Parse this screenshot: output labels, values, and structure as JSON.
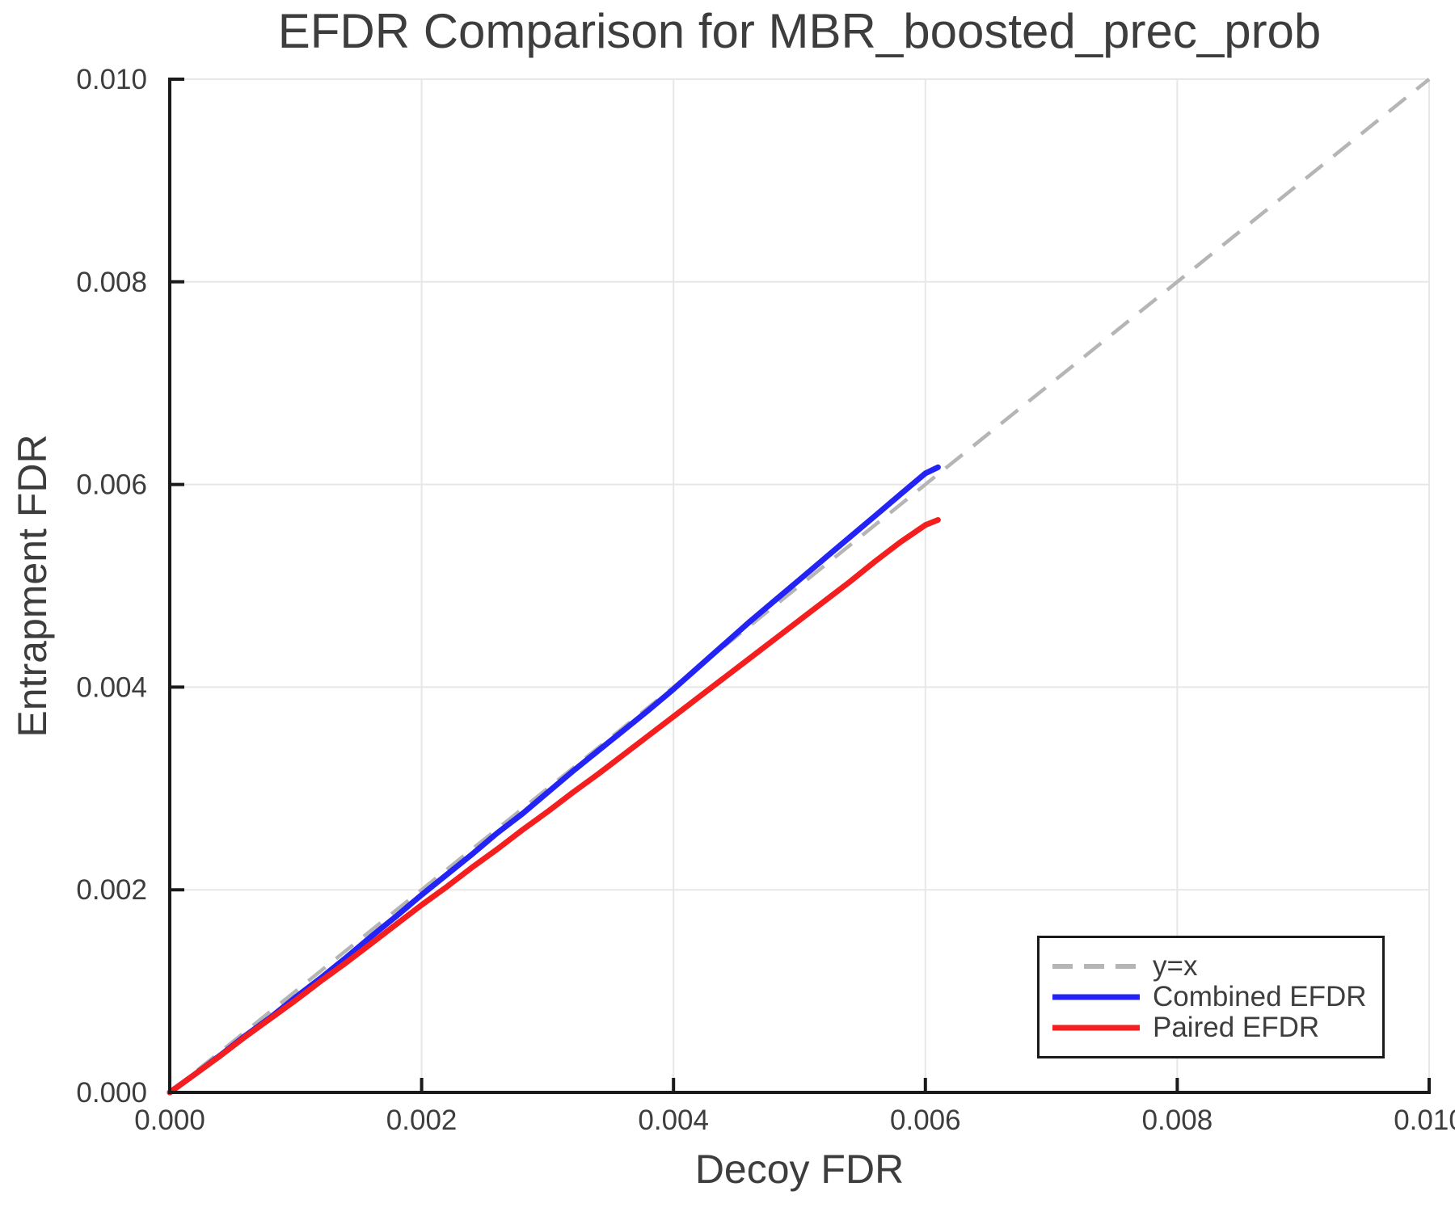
{
  "page": {
    "background": "#ffffff",
    "text_color": "#3d3d3d",
    "axis_color": "#1a1a1a",
    "gridline_color": "#e7e7e7"
  },
  "chart_data": {
    "type": "line",
    "title": "EFDR Comparison for MBR_boosted_prec_prob",
    "xlabel": "Decoy FDR",
    "ylabel": "Entrapment FDR",
    "xlim": [
      0.0,
      0.01
    ],
    "ylim": [
      0.0,
      0.01
    ],
    "grid": true,
    "xticks": {
      "values": [
        0.0,
        0.002,
        0.004,
        0.006,
        0.008,
        0.01
      ],
      "labels": [
        "0.000",
        "0.002",
        "0.004",
        "0.006",
        "0.008",
        "0.010"
      ]
    },
    "yticks": {
      "values": [
        0.0,
        0.002,
        0.004,
        0.006,
        0.008,
        0.01
      ],
      "labels": [
        "0.000",
        "0.002",
        "0.004",
        "0.006",
        "0.008",
        "0.010"
      ]
    },
    "reference_line": {
      "name": "y=x",
      "style": "dashed",
      "color": "#b5b5b5",
      "from": [
        0.0,
        0.0
      ],
      "to": [
        0.01,
        0.01
      ]
    },
    "series": [
      {
        "name": "Combined EFDR",
        "color": "#2323f5",
        "points": [
          [
            0.0,
            0.0
          ],
          [
            0.0002,
            0.00018
          ],
          [
            0.0004,
            0.000365
          ],
          [
            0.0006,
            0.00056
          ],
          [
            0.0008,
            0.00074
          ],
          [
            0.001,
            0.00094
          ],
          [
            0.0012,
            0.00113
          ],
          [
            0.0014,
            0.00133
          ],
          [
            0.0016,
            0.00154
          ],
          [
            0.0018,
            0.00174
          ],
          [
            0.002,
            0.00195
          ],
          [
            0.0022,
            0.00215
          ],
          [
            0.0024,
            0.00235
          ],
          [
            0.0026,
            0.00256
          ],
          [
            0.0028,
            0.00275
          ],
          [
            0.003,
            0.00296
          ],
          [
            0.0032,
            0.00317
          ],
          [
            0.0034,
            0.00337
          ],
          [
            0.0036,
            0.00357
          ],
          [
            0.0038,
            0.00377
          ],
          [
            0.004,
            0.00398
          ],
          [
            0.0042,
            0.0042
          ],
          [
            0.0044,
            0.00442
          ],
          [
            0.0046,
            0.00464
          ],
          [
            0.0048,
            0.00485
          ],
          [
            0.005,
            0.00506
          ],
          [
            0.0052,
            0.00527
          ],
          [
            0.0054,
            0.00548
          ],
          [
            0.0056,
            0.00569
          ],
          [
            0.0058,
            0.0059
          ],
          [
            0.006,
            0.00611
          ],
          [
            0.0061,
            0.00617
          ]
        ]
      },
      {
        "name": "Paired EFDR",
        "color": "#f51e1e",
        "points": [
          [
            0.0,
            0.0
          ],
          [
            0.0002,
            0.00018
          ],
          [
            0.0004,
            0.00036
          ],
          [
            0.0006,
            0.00055
          ],
          [
            0.0008,
            0.00073
          ],
          [
            0.001,
            0.00091
          ],
          [
            0.0012,
            0.0011
          ],
          [
            0.0014,
            0.00128
          ],
          [
            0.0016,
            0.00147
          ],
          [
            0.0018,
            0.00166
          ],
          [
            0.002,
            0.00185
          ],
          [
            0.0022,
            0.00203
          ],
          [
            0.0024,
            0.00222
          ],
          [
            0.0026,
            0.0024
          ],
          [
            0.0028,
            0.00259
          ],
          [
            0.003,
            0.00277
          ],
          [
            0.0032,
            0.00296
          ],
          [
            0.0034,
            0.00314
          ],
          [
            0.0036,
            0.00333
          ],
          [
            0.0038,
            0.00352
          ],
          [
            0.004,
            0.00371
          ],
          [
            0.0042,
            0.0039
          ],
          [
            0.0044,
            0.00409
          ],
          [
            0.0046,
            0.00428
          ],
          [
            0.0048,
            0.00447
          ],
          [
            0.005,
            0.00466
          ],
          [
            0.0052,
            0.00485
          ],
          [
            0.0054,
            0.00504
          ],
          [
            0.0056,
            0.00524
          ],
          [
            0.0058,
            0.00543
          ],
          [
            0.006,
            0.0056
          ],
          [
            0.0061,
            0.00565
          ]
        ]
      }
    ],
    "legend": {
      "position": "lower right",
      "entries": [
        {
          "label": "y=x",
          "color": "#b5b5b5",
          "dashed": true
        },
        {
          "label": "Combined EFDR",
          "color": "#2323f5",
          "dashed": false
        },
        {
          "label": "Paired EFDR",
          "color": "#f51e1e",
          "dashed": false
        }
      ]
    }
  }
}
